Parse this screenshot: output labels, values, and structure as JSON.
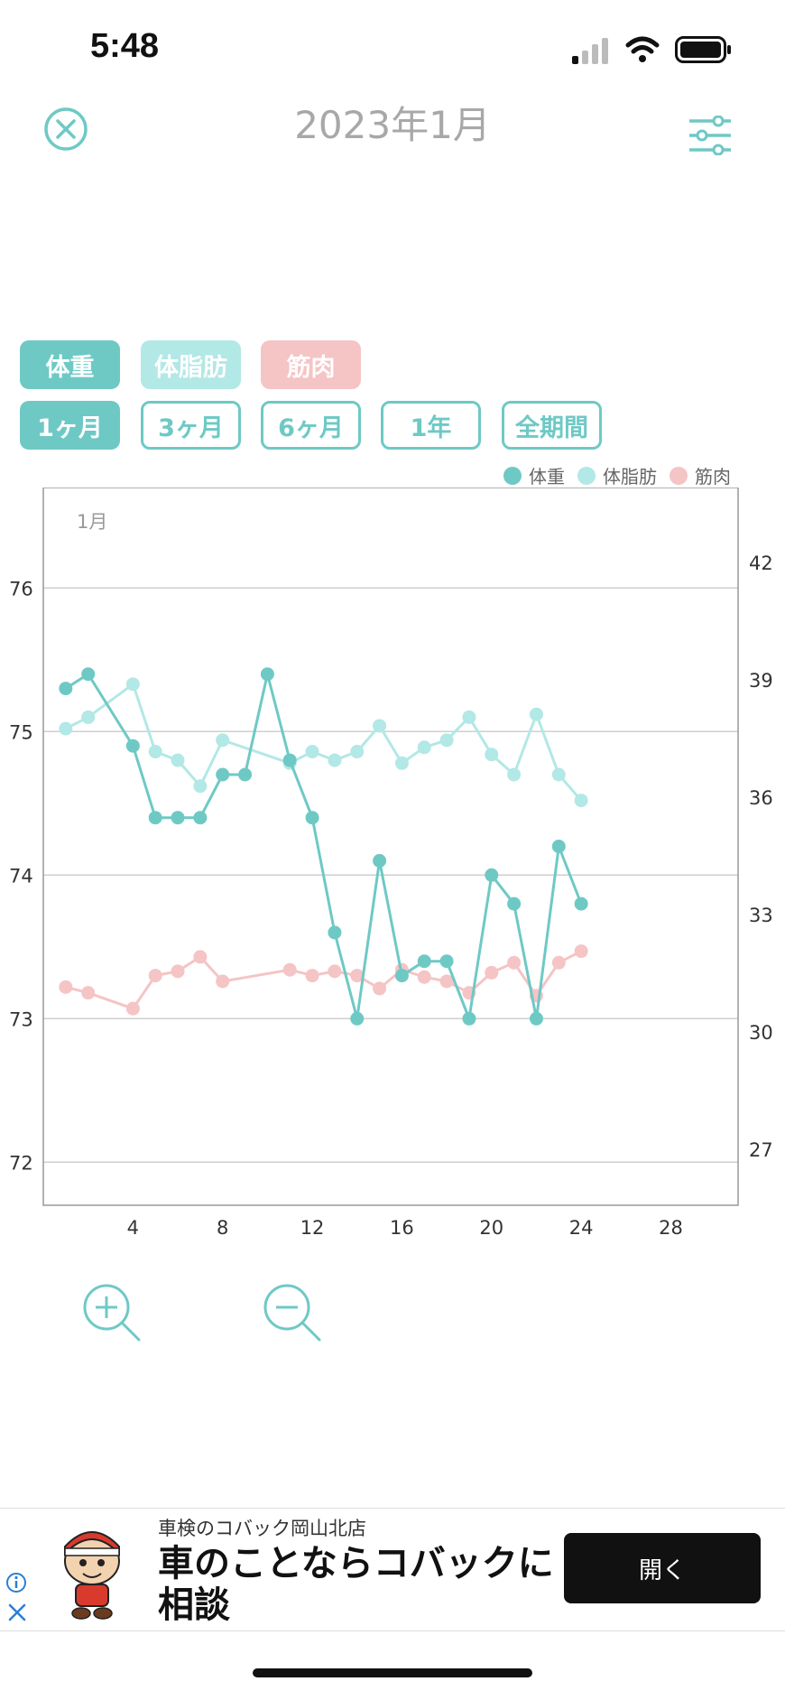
{
  "status_bar": {
    "time": "5:48"
  },
  "header": {
    "title": "2023年1月",
    "close_icon": "close-circle-icon",
    "filter_icon": "sliders-icon"
  },
  "metric_tabs": [
    {
      "label": "体重",
      "color": "#6ec9c5",
      "selected": true
    },
    {
      "label": "体脂肪",
      "color": "#b2e8e6",
      "selected": true
    },
    {
      "label": "筋肉",
      "color": "#f5c4c5",
      "selected": true
    }
  ],
  "period_tabs": [
    {
      "label": "1ヶ月",
      "selected": true
    },
    {
      "label": "3ヶ月",
      "selected": false
    },
    {
      "label": "6ヶ月",
      "selected": false
    },
    {
      "label": "1年",
      "selected": false
    },
    {
      "label": "全期間",
      "selected": false
    }
  ],
  "colors": {
    "accent": "#6ec9c5",
    "weight": "#6ec9c5",
    "body_fat": "#b2e8e6",
    "muscle": "#f5c4c5"
  },
  "chart_data": {
    "type": "line",
    "month_label": "1月",
    "legend": [
      "体重",
      "体脂肪",
      "筋肉"
    ],
    "legend_placement": "top-right",
    "grid": true,
    "x_ticks": [
      4,
      8,
      12,
      16,
      20,
      24,
      28
    ],
    "x_range": [
      0,
      31
    ],
    "y_left_ticks": [
      72,
      73,
      74,
      75,
      76
    ],
    "y_left_range": [
      71.7,
      76.7
    ],
    "y_right_ticks": [
      27,
      30,
      33,
      36,
      39,
      42
    ],
    "series": [
      {
        "name": "体重",
        "axis": "left",
        "color": "#6ec9c5",
        "x": [
          1,
          2,
          4,
          5,
          6,
          7,
          8,
          9,
          10,
          11,
          12,
          13,
          14,
          15,
          16,
          17,
          18,
          19,
          20,
          21,
          22,
          23,
          24
        ],
        "values": [
          75.3,
          75.4,
          74.9,
          74.4,
          74.4,
          74.4,
          74.7,
          74.7,
          75.4,
          74.8,
          74.4,
          73.6,
          73.0,
          74.1,
          73.3,
          73.4,
          73.4,
          73.0,
          74.0,
          73.8,
          73.0,
          74.2,
          73.8
        ]
      },
      {
        "name": "体脂肪",
        "axis": "left",
        "color": "#b2e8e6",
        "x": [
          1,
          2,
          4,
          5,
          6,
          7,
          8,
          11,
          12,
          13,
          14,
          15,
          16,
          17,
          18,
          19,
          20,
          21,
          22,
          23,
          24
        ],
        "values": [
          75.02,
          75.1,
          75.33,
          74.86,
          74.8,
          74.62,
          74.94,
          74.78,
          74.86,
          74.8,
          74.86,
          75.04,
          74.78,
          74.89,
          74.94,
          75.1,
          74.84,
          74.7,
          75.12,
          74.7,
          74.52
        ]
      },
      {
        "name": "筋肉",
        "axis": "left",
        "color": "#f5c4c5",
        "x": [
          1,
          2,
          4,
          5,
          6,
          7,
          8,
          11,
          12,
          13,
          14,
          15,
          16,
          17,
          18,
          19,
          20,
          21,
          22,
          23,
          24
        ],
        "values": [
          73.22,
          73.18,
          73.07,
          73.3,
          73.33,
          73.43,
          73.26,
          73.34,
          73.3,
          73.33,
          73.3,
          73.21,
          73.34,
          73.29,
          73.26,
          73.18,
          73.32,
          73.39,
          73.16,
          73.39,
          73.47
        ]
      }
    ]
  },
  "zoom": {
    "in_icon": "zoom-in-icon",
    "out_icon": "zoom-out-icon"
  },
  "ad": {
    "advertiser": "車検のコバック岡山北店",
    "headline": "車のことならコバックに相談",
    "button": "開く",
    "info_icon": "info-icon",
    "close_icon": "close-icon",
    "mascot_icon": "mascot-icon"
  }
}
